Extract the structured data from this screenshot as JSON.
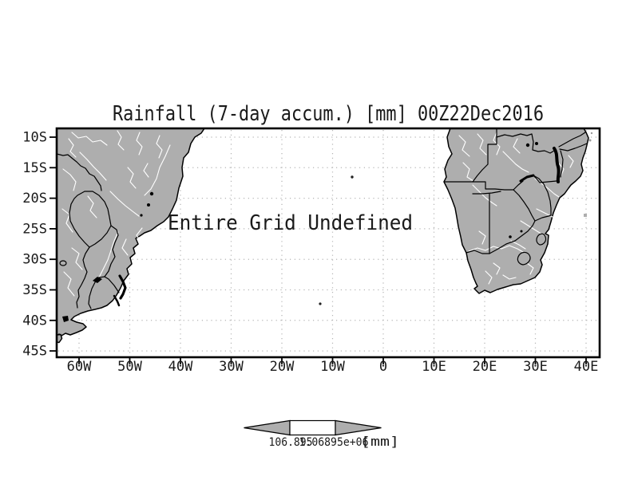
{
  "title": "Rainfall (7-day accum.) [mm] 00Z22Dec2016",
  "plot": {
    "undefined_message": "Entire Grid Undefined"
  },
  "axes": {
    "lat_labels": [
      "10S",
      "15S",
      "20S",
      "25S",
      "30S",
      "35S",
      "40S",
      "45S"
    ],
    "lon_labels": [
      "60W",
      "50W",
      "40W",
      "30W",
      "20W",
      "10W",
      "0",
      "10E",
      "20E",
      "30E",
      "40E"
    ]
  },
  "colorbar": {
    "min_label": "106.895",
    "max_label": "1.06895e+06",
    "unit_label": "[mm]"
  },
  "colors": {
    "land": "#aeaeae",
    "grid": "#b5b5b5",
    "river": "#ffffff",
    "frame": "#000000",
    "text": "#1a1a1a"
  },
  "chart_data": {
    "type": "heatmap",
    "title": "Rainfall (7-day accum.) [mm] 00Z22Dec2016",
    "x_tick_labels": [
      "60W",
      "50W",
      "40W",
      "30W",
      "20W",
      "10W",
      "0",
      "10E",
      "20E",
      "30E",
      "40E"
    ],
    "y_tick_labels": [
      "10S",
      "15S",
      "20S",
      "25S",
      "30S",
      "35S",
      "40S",
      "45S"
    ],
    "values": "undefined",
    "annotations": [
      "Entire Grid Undefined"
    ],
    "grid": "dotted",
    "legend_position": "bottom-center",
    "colorbar": {
      "min": "106.895",
      "max": "1.06895e+06",
      "unit": "[mm]"
    }
  }
}
